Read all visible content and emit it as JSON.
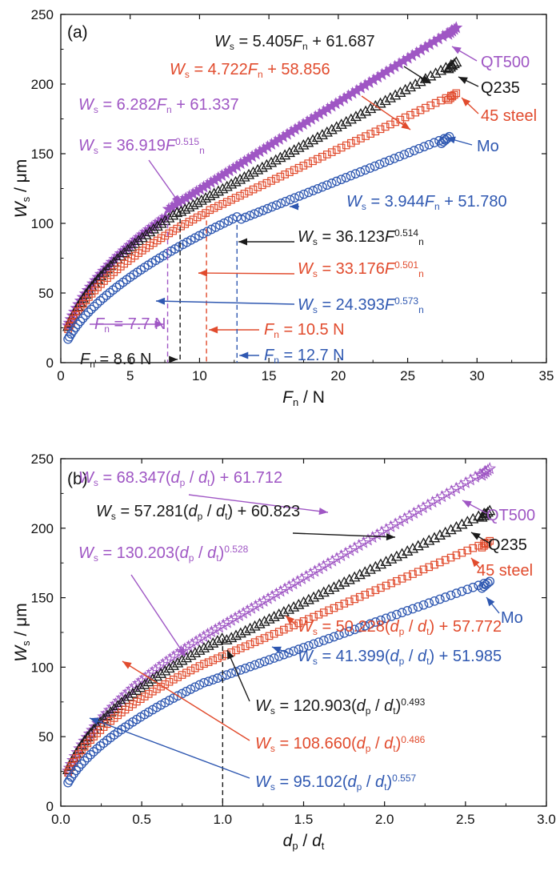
{
  "colors": {
    "QT500": "#9f56c4",
    "Q235": "#1a1a1a",
    "45 steel": "#e14b2d",
    "Mo": "#2f58b1",
    "axis": "#111111"
  },
  "chart_data": [
    {
      "type": "scatter",
      "panel_label": "(a)",
      "xlabel": {
        "sym": "F",
        "sub": "n",
        "unit": " / N"
      },
      "ylabel": {
        "sym": "W",
        "sub": "s",
        "unit": " / μm"
      },
      "xlim": [
        0,
        35
      ],
      "ylim": [
        0,
        250
      ],
      "xticks": [
        0,
        5,
        10,
        15,
        20,
        25,
        30,
        35
      ],
      "yticks": [
        0,
        50,
        100,
        150,
        200,
        250
      ],
      "grid": false,
      "legend": "labels at curve ends",
      "series": [
        {
          "name": "QT500",
          "marker": "star",
          "fill": true,
          "xmax": 28.5,
          "linear": [
            6.282,
            61.337
          ],
          "power": [
            36.919,
            0.515
          ]
        },
        {
          "name": "Q235",
          "marker": "triangle",
          "fill": false,
          "xmax": 28.5,
          "linear": [
            5.405,
            61.687
          ],
          "power": [
            36.123,
            0.514
          ]
        },
        {
          "name": "45 steel",
          "marker": "square",
          "fill": false,
          "xmax": 28.5,
          "linear": [
            4.722,
            58.856
          ],
          "power": [
            33.176,
            0.501
          ]
        },
        {
          "name": "Mo",
          "marker": "circle",
          "fill": false,
          "xmax": 28.0,
          "linear": [
            3.944,
            51.78
          ],
          "power": [
            24.393,
            0.573
          ]
        }
      ],
      "transition_lines": [
        {
          "series": "QT500",
          "x": 7.7,
          "label": {
            "sym": "F",
            "sub": "n",
            "rest": " = 7.7 N"
          }
        },
        {
          "series": "Q235",
          "x": 8.6,
          "label": {
            "sym": "F",
            "sub": "n",
            "rest": " = 8.6 N"
          }
        },
        {
          "series": "45 steel",
          "x": 10.5,
          "label": {
            "sym": "F",
            "sub": "n",
            "rest": " = 10.5 N"
          }
        },
        {
          "series": "Mo",
          "x": 12.7,
          "label": {
            "sym": "F",
            "sub": "n",
            "rest": " = 12.7 N"
          }
        }
      ],
      "series_labels": [
        "QT500",
        "Q235",
        "45 steel",
        "Mo"
      ],
      "equations": [
        {
          "series": "Q235",
          "parts": [
            {
              "t": "W",
              "i": true
            },
            {
              "t": "s",
              "sub": true
            },
            {
              "t": " = 5.405"
            },
            {
              "t": "F",
              "i": true
            },
            {
              "t": "n",
              "sub": true
            },
            {
              "t": " + 61.687"
            }
          ]
        },
        {
          "series": "45 steel",
          "parts": [
            {
              "t": "W",
              "i": true
            },
            {
              "t": "s",
              "sub": true
            },
            {
              "t": " = 4.722"
            },
            {
              "t": "F",
              "i": true
            },
            {
              "t": "n",
              "sub": true
            },
            {
              "t": " + 58.856"
            }
          ]
        },
        {
          "series": "QT500",
          "parts": [
            {
              "t": "W",
              "i": true
            },
            {
              "t": "s",
              "sub": true
            },
            {
              "t": " = 6.282"
            },
            {
              "t": "F",
              "i": true
            },
            {
              "t": "n",
              "sub": true
            },
            {
              "t": " + 61.337"
            }
          ]
        },
        {
          "series": "QT500",
          "parts": [
            {
              "t": "W",
              "i": true
            },
            {
              "t": "s",
              "sub": true
            },
            {
              "t": " = 36.919"
            },
            {
              "t": "F",
              "i": true
            },
            {
              "t": "0.515",
              "sup": true
            },
            {
              "t": "n",
              "sub": true
            }
          ]
        },
        {
          "series": "Mo",
          "parts": [
            {
              "t": "W",
              "i": true
            },
            {
              "t": "s",
              "sub": true
            },
            {
              "t": " = 3.944"
            },
            {
              "t": "F",
              "i": true
            },
            {
              "t": "n",
              "sub": true
            },
            {
              "t": " + 51.780"
            }
          ]
        },
        {
          "series": "Q235",
          "parts": [
            {
              "t": "W",
              "i": true
            },
            {
              "t": "s",
              "sub": true
            },
            {
              "t": " = 36.123"
            },
            {
              "t": "F",
              "i": true
            },
            {
              "t": "0.514",
              "sup": true
            },
            {
              "t": "n",
              "sub": true
            }
          ]
        },
        {
          "series": "45 steel",
          "parts": [
            {
              "t": "W",
              "i": true
            },
            {
              "t": "s",
              "sub": true
            },
            {
              "t": " = 33.176"
            },
            {
              "t": "F",
              "i": true
            },
            {
              "t": "0.501",
              "sup": true
            },
            {
              "t": "n",
              "sub": true
            }
          ]
        },
        {
          "series": "Mo",
          "parts": [
            {
              "t": "W",
              "i": true
            },
            {
              "t": "s",
              "sub": true
            },
            {
              "t": " = 24.393"
            },
            {
              "t": "F",
              "i": true
            },
            {
              "t": "0.573",
              "sup": true
            },
            {
              "t": "n",
              "sub": true
            }
          ]
        }
      ]
    },
    {
      "type": "scatter",
      "panel_label": "(b)",
      "xlabel": {
        "sym": "d",
        "sub": "p",
        "mid": " / ",
        "sym2": "d",
        "sub2": "t"
      },
      "ylabel": {
        "sym": "W",
        "sub": "s",
        "unit": " / μm"
      },
      "xlim": [
        0,
        3.0
      ],
      "ylim": [
        0,
        250
      ],
      "xticks": [
        0.0,
        0.5,
        1.0,
        1.5,
        2.0,
        2.5,
        3.0
      ],
      "yticks": [
        0,
        50,
        100,
        150,
        200,
        250
      ],
      "grid": false,
      "legend": "labels at curve ends",
      "series": [
        {
          "name": "QT500",
          "marker": "star",
          "fill": false,
          "xmax": 2.65,
          "linear": [
            68.347,
            61.712
          ],
          "power": [
            130.203,
            0.528
          ]
        },
        {
          "name": "Q235",
          "marker": "triangle",
          "fill": false,
          "xmax": 2.65,
          "linear": [
            57.281,
            60.823
          ],
          "power": [
            120.903,
            0.493
          ]
        },
        {
          "name": "45 steel",
          "marker": "square",
          "fill": false,
          "xmax": 2.65,
          "linear": [
            50.228,
            57.772
          ],
          "power": [
            108.66,
            0.486
          ]
        },
        {
          "name": "Mo",
          "marker": "circle",
          "fill": false,
          "xmax": 2.65,
          "linear": [
            41.399,
            51.985
          ],
          "power": [
            95.102,
            0.557
          ]
        }
      ],
      "transition_lines": [
        {
          "series": "Q235",
          "x": 1.0
        }
      ],
      "series_labels": [
        "QT500",
        "Q235",
        "45 steel",
        "Mo"
      ],
      "equations": [
        {
          "series": "QT500",
          "parts": [
            {
              "t": "W",
              "i": true
            },
            {
              "t": "s",
              "sub": true
            },
            {
              "t": " = 68.347("
            },
            {
              "t": "d",
              "i": true
            },
            {
              "t": "p",
              "sub": true
            },
            {
              "t": " / "
            },
            {
              "t": "d",
              "i": true
            },
            {
              "t": "t",
              "sub": true
            },
            {
              "t": ") + 61.712"
            }
          ]
        },
        {
          "series": "Q235",
          "parts": [
            {
              "t": "W",
              "i": true
            },
            {
              "t": "s",
              "sub": true
            },
            {
              "t": " = 57.281("
            },
            {
              "t": "d",
              "i": true
            },
            {
              "t": "p",
              "sub": true
            },
            {
              "t": " / "
            },
            {
              "t": "d",
              "i": true
            },
            {
              "t": "t",
              "sub": true
            },
            {
              "t": ") + 60.823"
            }
          ]
        },
        {
          "series": "QT500",
          "parts": [
            {
              "t": "W",
              "i": true
            },
            {
              "t": "s",
              "sub": true
            },
            {
              "t": " = 130.203("
            },
            {
              "t": "d",
              "i": true
            },
            {
              "t": "p",
              "sub": true
            },
            {
              "t": " / "
            },
            {
              "t": "d",
              "i": true
            },
            {
              "t": "t",
              "sub": true
            },
            {
              "t": ")"
            },
            {
              "t": "0.528",
              "sup": true
            }
          ]
        },
        {
          "series": "45 steel",
          "parts": [
            {
              "t": "W",
              "i": true
            },
            {
              "t": "s",
              "sub": true
            },
            {
              "t": " = 50.228("
            },
            {
              "t": "d",
              "i": true
            },
            {
              "t": "p",
              "sub": true
            },
            {
              "t": " / "
            },
            {
              "t": "d",
              "i": true
            },
            {
              "t": "t",
              "sub": true
            },
            {
              "t": ") + 57.772"
            }
          ]
        },
        {
          "series": "Mo",
          "parts": [
            {
              "t": "W",
              "i": true
            },
            {
              "t": "s",
              "sub": true
            },
            {
              "t": " = 41.399("
            },
            {
              "t": "d",
              "i": true
            },
            {
              "t": "p",
              "sub": true
            },
            {
              "t": " / "
            },
            {
              "t": "d",
              "i": true
            },
            {
              "t": "t",
              "sub": true
            },
            {
              "t": ") + 51.985"
            }
          ]
        },
        {
          "series": "Q235",
          "parts": [
            {
              "t": "W",
              "i": true
            },
            {
              "t": "s",
              "sub": true
            },
            {
              "t": " = 120.903("
            },
            {
              "t": "d",
              "i": true
            },
            {
              "t": "p",
              "sub": true
            },
            {
              "t": " / "
            },
            {
              "t": "d",
              "i": true
            },
            {
              "t": "t",
              "sub": true
            },
            {
              "t": ")"
            },
            {
              "t": "0.493",
              "sup": true
            }
          ]
        },
        {
          "series": "45 steel",
          "parts": [
            {
              "t": "W",
              "i": true
            },
            {
              "t": "s",
              "sub": true
            },
            {
              "t": " = 108.660("
            },
            {
              "t": "d",
              "i": true
            },
            {
              "t": "p",
              "sub": true
            },
            {
              "t": " / "
            },
            {
              "t": "d",
              "i": true
            },
            {
              "t": "t",
              "sub": true
            },
            {
              "t": ")"
            },
            {
              "t": "0.486",
              "sup": true
            }
          ]
        },
        {
          "series": "Mo",
          "parts": [
            {
              "t": "W",
              "i": true
            },
            {
              "t": "s",
              "sub": true
            },
            {
              "t": " = 95.102("
            },
            {
              "t": "d",
              "i": true
            },
            {
              "t": "p",
              "sub": true
            },
            {
              "t": " / "
            },
            {
              "t": "d",
              "i": true
            },
            {
              "t": "t",
              "sub": true
            },
            {
              "t": ")"
            },
            {
              "t": "0.557",
              "sup": true
            }
          ]
        }
      ]
    }
  ]
}
